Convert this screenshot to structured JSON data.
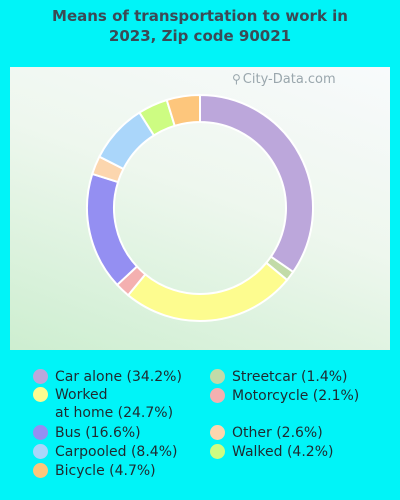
{
  "chart_data": {
    "type": "pie",
    "title_line1": "Means of transportation to work in",
    "title_line2": "2023, Zip code 90021",
    "watermark": "City-Data.com",
    "slices": [
      {
        "label": "Car alone (34.2%)",
        "value": 34.2,
        "color": "#bca7db"
      },
      {
        "label": "Streetcar (1.4%)",
        "value": 1.4,
        "color": "#c2dba8"
      },
      {
        "label": "Worked at home (24.7%)",
        "label_line1": "Worked",
        "label_line2": "at home (24.7%)",
        "value": 24.7,
        "color": "#fdfc8f"
      },
      {
        "label": "Motorcycle (2.1%)",
        "value": 2.1,
        "color": "#f4b0b0"
      },
      {
        "label": "Bus (16.6%)",
        "value": 16.6,
        "color": "#948ff2"
      },
      {
        "label": "Other (2.6%)",
        "value": 2.6,
        "color": "#fcd6ae"
      },
      {
        "label": "Carpooled (8.4%)",
        "value": 8.4,
        "color": "#aad6fa"
      },
      {
        "label": "Walked (4.2%)",
        "value": 4.2,
        "color": "#cdfc82"
      },
      {
        "label": "Bicycle (4.7%)",
        "value": 4.7,
        "color": "#fdc67c"
      }
    ]
  }
}
